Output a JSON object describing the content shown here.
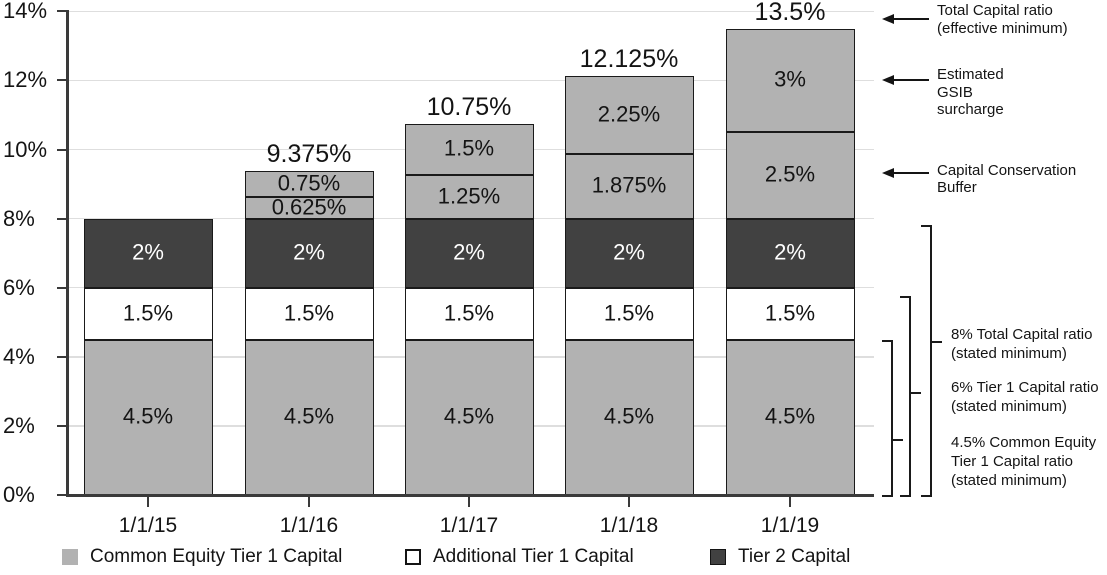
{
  "chart_data": {
    "type": "bar",
    "stacked": true,
    "title": "",
    "xlabel": "",
    "ylabel": "",
    "ylim": [
      0,
      14
    ],
    "grid": true,
    "legend_position": "bottom",
    "y_tick_labels": [
      "0%",
      "2%",
      "4%",
      "6%",
      "8%",
      "10%",
      "12%",
      "14%"
    ],
    "y_tick_values": [
      0,
      2,
      4,
      6,
      8,
      10,
      12,
      14
    ],
    "categories": [
      "1/1/15",
      "1/1/16",
      "1/1/17",
      "1/1/18",
      "1/1/19"
    ],
    "series": [
      {
        "name": "Common Equity Tier 1 Capital",
        "color": "#b2b2b2",
        "text_color": "#141414",
        "values": [
          4.5,
          4.5,
          4.5,
          4.5,
          4.5
        ],
        "labels": [
          "4.5%",
          "4.5%",
          "4.5%",
          "4.5%",
          "4.5%"
        ]
      },
      {
        "name": "Additional Tier 1 Capital",
        "color": "#ffffff",
        "text_color": "#141414",
        "values": [
          1.5,
          1.5,
          1.5,
          1.5,
          1.5
        ],
        "labels": [
          "1.5%",
          "1.5%",
          "1.5%",
          "1.5%",
          "1.5%"
        ]
      },
      {
        "name": "Tier 2 Capital",
        "color": "#414141",
        "text_color": "#ffffff",
        "values": [
          2,
          2,
          2,
          2,
          2
        ],
        "labels": [
          "2%",
          "2%",
          "2%",
          "2%",
          "2%"
        ]
      },
      {
        "name": "Capital Conservation Buffer",
        "color": "#b2b2b2",
        "text_color": "#141414",
        "values": [
          0,
          0.625,
          1.25,
          1.875,
          2.5
        ],
        "labels": [
          "",
          "0.625%",
          "1.25%",
          "1.875%",
          "2.5%"
        ]
      },
      {
        "name": "Estimated GSIB surcharge",
        "color": "#b2b2b2",
        "text_color": "#141414",
        "values": [
          0,
          0.75,
          1.5,
          2.25,
          3
        ],
        "labels": [
          "",
          "0.75%",
          "1.5%",
          "2.25%",
          "3%"
        ]
      }
    ],
    "bar_totals": [
      "",
      "9.375%",
      "10.75%",
      "12.125%",
      "13.5%"
    ]
  },
  "legend": {
    "items": [
      {
        "label": "Common Equity Tier 1 Capital",
        "color": "#b2b2b2",
        "border": "none"
      },
      {
        "label": "Additional Tier 1 Capital",
        "color": "#ffffff",
        "border": "2.5px solid #141414"
      },
      {
        "label": "Tier 2 Capital",
        "color": "#414141",
        "border": "1px solid #141414"
      }
    ]
  },
  "right_annotations": {
    "arrows": [
      {
        "lines": [
          "Total Capital ratio",
          "(effective minimum)"
        ],
        "at_pct": 13.77
      },
      {
        "lines": [
          "Estimated",
          "GSIB",
          "surcharge"
        ],
        "at_pct": 12.0
      },
      {
        "lines": [
          "Capital Conservation",
          "Buffer"
        ],
        "at_pct": 9.32
      }
    ],
    "brackets": [
      {
        "from_pct": 0,
        "to_pct": 8,
        "lines": [
          "8% Total Capital ratio",
          "(stated minimum)"
        ]
      },
      {
        "from_pct": 0,
        "to_pct": 6,
        "lines": [
          "6% Tier 1 Capital ratio",
          "(stated minimum)"
        ]
      },
      {
        "from_pct": 0,
        "to_pct": 4.5,
        "lines": [
          "4.5% Common Equity",
          "Tier 1 Capital ratio",
          "(stated minimum)"
        ]
      }
    ]
  },
  "colors": {
    "grid": "#dedede",
    "axis": "#3a3a3a",
    "text": "#141414",
    "cet1_gray": "#b2b2b2",
    "tier2_dark": "#414141",
    "white": "#ffffff"
  }
}
